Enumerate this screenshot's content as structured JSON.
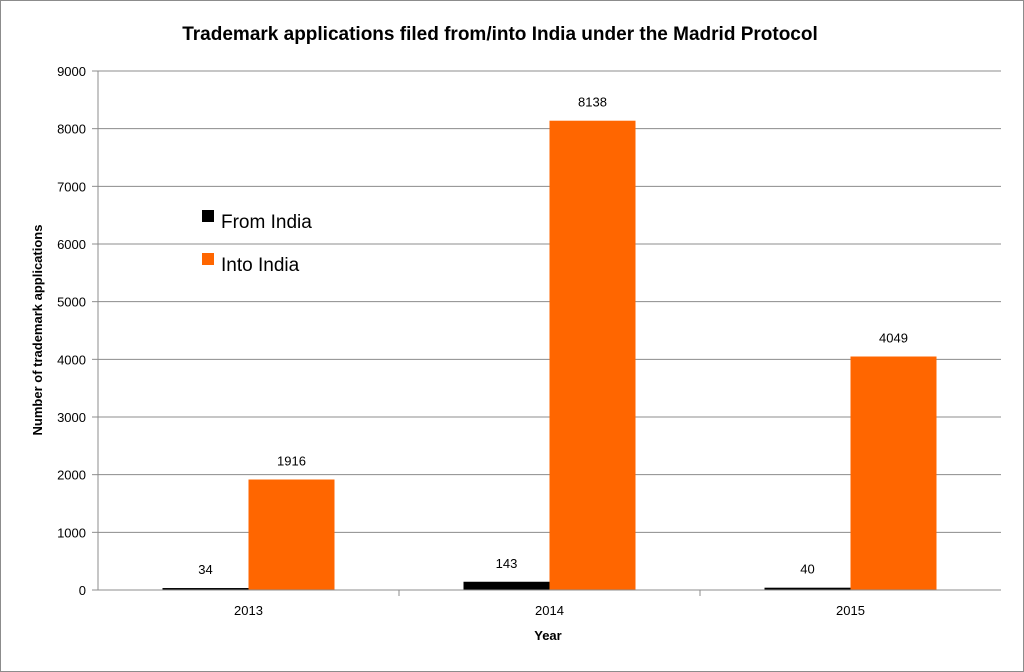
{
  "chart_data": {
    "type": "bar",
    "title": "Trademark applications filed from/into India under the Madrid Protocol",
    "xlabel": "Year",
    "ylabel": "Number of trademark applications",
    "categories": [
      "2013",
      "2014",
      "2015"
    ],
    "series": [
      {
        "name": "From India",
        "color": "#000000",
        "values": [
          34,
          143,
          40
        ]
      },
      {
        "name": "Into India",
        "color": "#ff6600",
        "values": [
          1916,
          8138,
          4049
        ]
      }
    ],
    "ylim": [
      0,
      9000
    ],
    "yticks": [
      "0",
      "1000",
      "2000",
      "3000",
      "4000",
      "5000",
      "6000",
      "7000",
      "8000",
      "9000"
    ],
    "grid": true,
    "legend_position": "upper-left inside plot",
    "data_labels": true
  }
}
